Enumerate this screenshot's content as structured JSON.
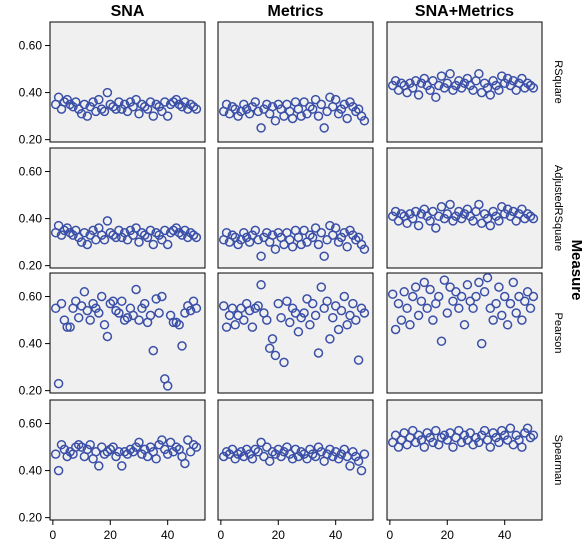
{
  "chart_data": {
    "type": "scatter",
    "facet_columns": [
      "SNA",
      "Metrics",
      "SNA+Metrics"
    ],
    "facet_rows": [
      "RSquare",
      "AdjustedRSquare",
      "Pearson",
      "Spearman"
    ],
    "row_facet_title": "Measure",
    "xlim": [
      -1,
      53
    ],
    "ylim": [
      0.19,
      0.7
    ],
    "x_ticks": [
      0,
      20,
      40
    ],
    "y_ticks": [
      0.2,
      0.4,
      0.6
    ],
    "y_tick_labels": [
      "0.20",
      "0.40",
      "0.60"
    ],
    "marker": "open-circle",
    "marker_color": "#3a4fa8",
    "panel_background": "#f0f0f0",
    "grid": false,
    "x": [
      1,
      2,
      3,
      4,
      5,
      6,
      7,
      8,
      9,
      10,
      11,
      12,
      13,
      14,
      15,
      16,
      17,
      18,
      19,
      20,
      21,
      22,
      23,
      24,
      25,
      26,
      27,
      28,
      29,
      30,
      31,
      32,
      33,
      34,
      35,
      36,
      37,
      38,
      39,
      40,
      41,
      42,
      43,
      44,
      45,
      46,
      47,
      48,
      49,
      50
    ],
    "panels": [
      [
        {
          "col": "SNA",
          "row": "RSquare",
          "y": [
            0.35,
            0.38,
            0.33,
            0.36,
            0.37,
            0.35,
            0.34,
            0.36,
            0.33,
            0.31,
            0.35,
            0.3,
            0.34,
            0.36,
            0.32,
            0.37,
            0.33,
            0.32,
            0.4,
            0.35,
            0.34,
            0.33,
            0.36,
            0.33,
            0.35,
            0.32,
            0.36,
            0.34,
            0.37,
            0.31,
            0.35,
            0.34,
            0.33,
            0.36,
            0.3,
            0.35,
            0.34,
            0.32,
            0.36,
            0.3,
            0.35,
            0.36,
            0.37,
            0.35,
            0.34,
            0.36,
            0.33,
            0.35,
            0.34,
            0.33
          ]
        },
        {
          "col": "SNA",
          "row": "AdjustedRSquare",
          "y": [
            0.34,
            0.37,
            0.33,
            0.35,
            0.36,
            0.34,
            0.33,
            0.35,
            0.32,
            0.3,
            0.34,
            0.29,
            0.33,
            0.35,
            0.31,
            0.36,
            0.33,
            0.31,
            0.39,
            0.34,
            0.33,
            0.32,
            0.35,
            0.32,
            0.34,
            0.31,
            0.35,
            0.33,
            0.36,
            0.3,
            0.34,
            0.33,
            0.32,
            0.35,
            0.29,
            0.34,
            0.33,
            0.31,
            0.35,
            0.29,
            0.34,
            0.35,
            0.36,
            0.34,
            0.33,
            0.35,
            0.32,
            0.34,
            0.33,
            0.32
          ]
        },
        {
          "col": "SNA",
          "row": "Pearson",
          "y": [
            0.55,
            0.23,
            0.57,
            0.5,
            0.47,
            0.47,
            0.55,
            0.58,
            0.51,
            0.56,
            0.62,
            0.54,
            0.5,
            0.57,
            0.55,
            0.53,
            0.6,
            0.48,
            0.43,
            0.57,
            0.58,
            0.54,
            0.53,
            0.58,
            0.5,
            0.51,
            0.55,
            0.52,
            0.63,
            0.5,
            0.55,
            0.57,
            0.49,
            0.52,
            0.37,
            0.59,
            0.53,
            0.6,
            0.25,
            0.22,
            0.52,
            0.49,
            0.49,
            0.48,
            0.39,
            0.53,
            0.56,
            0.54,
            0.58,
            0.55
          ]
        },
        {
          "col": "SNA",
          "row": "Spearman",
          "y": [
            0.47,
            0.4,
            0.51,
            0.49,
            0.46,
            0.48,
            0.47,
            0.5,
            0.51,
            0.5,
            0.46,
            0.49,
            0.51,
            0.45,
            0.48,
            0.42,
            0.5,
            0.47,
            0.48,
            0.49,
            0.5,
            0.46,
            0.48,
            0.42,
            0.48,
            0.47,
            0.49,
            0.48,
            0.5,
            0.52,
            0.47,
            0.49,
            0.46,
            0.5,
            0.48,
            0.45,
            0.51,
            0.53,
            0.49,
            0.47,
            0.52,
            0.48,
            0.5,
            0.49,
            0.46,
            0.43,
            0.53,
            0.48,
            0.51,
            0.5
          ]
        }
      ],
      [
        {
          "col": "Metrics",
          "row": "RSquare",
          "y": [
            0.32,
            0.35,
            0.31,
            0.34,
            0.33,
            0.3,
            0.32,
            0.35,
            0.33,
            0.31,
            0.34,
            0.36,
            0.32,
            0.25,
            0.33,
            0.35,
            0.31,
            0.34,
            0.28,
            0.35,
            0.33,
            0.3,
            0.35,
            0.32,
            0.29,
            0.36,
            0.33,
            0.3,
            0.36,
            0.31,
            0.34,
            0.33,
            0.37,
            0.3,
            0.35,
            0.25,
            0.32,
            0.38,
            0.34,
            0.37,
            0.31,
            0.33,
            0.35,
            0.29,
            0.36,
            0.34,
            0.32,
            0.33,
            0.3,
            0.28
          ]
        },
        {
          "col": "Metrics",
          "row": "AdjustedRSquare",
          "y": [
            0.31,
            0.34,
            0.3,
            0.33,
            0.32,
            0.29,
            0.31,
            0.34,
            0.32,
            0.3,
            0.33,
            0.35,
            0.31,
            0.24,
            0.32,
            0.34,
            0.3,
            0.33,
            0.27,
            0.34,
            0.32,
            0.29,
            0.34,
            0.31,
            0.28,
            0.35,
            0.32,
            0.29,
            0.35,
            0.3,
            0.33,
            0.32,
            0.36,
            0.29,
            0.34,
            0.24,
            0.31,
            0.37,
            0.33,
            0.36,
            0.3,
            0.32,
            0.34,
            0.28,
            0.35,
            0.33,
            0.31,
            0.32,
            0.29,
            0.27
          ]
        },
        {
          "col": "Metrics",
          "row": "Pearson",
          "y": [
            0.56,
            0.47,
            0.52,
            0.55,
            0.48,
            0.52,
            0.55,
            0.5,
            0.57,
            0.54,
            0.47,
            0.55,
            0.56,
            0.65,
            0.53,
            0.5,
            0.38,
            0.42,
            0.35,
            0.57,
            0.51,
            0.32,
            0.58,
            0.49,
            0.55,
            0.53,
            0.45,
            0.51,
            0.53,
            0.59,
            0.48,
            0.57,
            0.52,
            0.36,
            0.64,
            0.55,
            0.58,
            0.42,
            0.51,
            0.56,
            0.46,
            0.54,
            0.6,
            0.48,
            0.52,
            0.57,
            0.5,
            0.33,
            0.55,
            0.53
          ]
        },
        {
          "col": "Metrics",
          "row": "Spearman",
          "y": [
            0.46,
            0.48,
            0.47,
            0.49,
            0.45,
            0.47,
            0.48,
            0.46,
            0.49,
            0.47,
            0.45,
            0.49,
            0.48,
            0.52,
            0.46,
            0.5,
            0.44,
            0.48,
            0.47,
            0.49,
            0.46,
            0.48,
            0.5,
            0.47,
            0.45,
            0.49,
            0.46,
            0.48,
            0.47,
            0.45,
            0.49,
            0.47,
            0.46,
            0.5,
            0.48,
            0.44,
            0.47,
            0.49,
            0.46,
            0.48,
            0.45,
            0.47,
            0.49,
            0.46,
            0.42,
            0.48,
            0.46,
            0.44,
            0.4,
            0.47
          ]
        }
      ],
      [
        {
          "col": "SNA+Metrics",
          "row": "RSquare",
          "y": [
            0.43,
            0.45,
            0.41,
            0.44,
            0.43,
            0.4,
            0.44,
            0.42,
            0.45,
            0.39,
            0.44,
            0.46,
            0.43,
            0.41,
            0.45,
            0.38,
            0.43,
            0.47,
            0.42,
            0.44,
            0.48,
            0.41,
            0.43,
            0.45,
            0.42,
            0.44,
            0.46,
            0.43,
            0.41,
            0.45,
            0.48,
            0.4,
            0.44,
            0.42,
            0.39,
            0.45,
            0.43,
            0.41,
            0.47,
            0.44,
            0.46,
            0.43,
            0.45,
            0.41,
            0.44,
            0.46,
            0.42,
            0.44,
            0.43,
            0.42
          ]
        },
        {
          "col": "SNA+Metrics",
          "row": "AdjustedRSquare",
          "y": [
            0.41,
            0.43,
            0.39,
            0.42,
            0.41,
            0.38,
            0.42,
            0.4,
            0.43,
            0.37,
            0.42,
            0.44,
            0.41,
            0.39,
            0.43,
            0.36,
            0.41,
            0.45,
            0.4,
            0.42,
            0.46,
            0.39,
            0.41,
            0.43,
            0.4,
            0.42,
            0.44,
            0.41,
            0.39,
            0.43,
            0.46,
            0.38,
            0.42,
            0.4,
            0.37,
            0.43,
            0.41,
            0.39,
            0.45,
            0.42,
            0.44,
            0.41,
            0.43,
            0.39,
            0.42,
            0.44,
            0.4,
            0.42,
            0.41,
            0.4
          ]
        },
        {
          "col": "SNA+Metrics",
          "row": "Pearson",
          "y": [
            0.61,
            0.46,
            0.57,
            0.5,
            0.62,
            0.55,
            0.48,
            0.6,
            0.64,
            0.52,
            0.58,
            0.66,
            0.55,
            0.63,
            0.5,
            0.57,
            0.6,
            0.41,
            0.67,
            0.53,
            0.64,
            0.58,
            0.62,
            0.55,
            0.6,
            0.48,
            0.65,
            0.58,
            0.55,
            0.6,
            0.66,
            0.4,
            0.62,
            0.68,
            0.55,
            0.5,
            0.57,
            0.64,
            0.52,
            0.6,
            0.48,
            0.57,
            0.66,
            0.53,
            0.6,
            0.5,
            0.58,
            0.62,
            0.55,
            0.6
          ]
        },
        {
          "col": "SNA+Metrics",
          "row": "Spearman",
          "y": [
            0.52,
            0.55,
            0.5,
            0.53,
            0.56,
            0.51,
            0.54,
            0.57,
            0.52,
            0.55,
            0.53,
            0.5,
            0.56,
            0.54,
            0.52,
            0.57,
            0.51,
            0.54,
            0.55,
            0.53,
            0.56,
            0.5,
            0.54,
            0.57,
            0.52,
            0.55,
            0.53,
            0.56,
            0.51,
            0.54,
            0.52,
            0.55,
            0.57,
            0.53,
            0.5,
            0.56,
            0.54,
            0.52,
            0.57,
            0.55,
            0.53,
            0.58,
            0.51,
            0.55,
            0.53,
            0.5,
            0.56,
            0.58,
            0.54,
            0.55
          ]
        }
      ]
    ]
  }
}
